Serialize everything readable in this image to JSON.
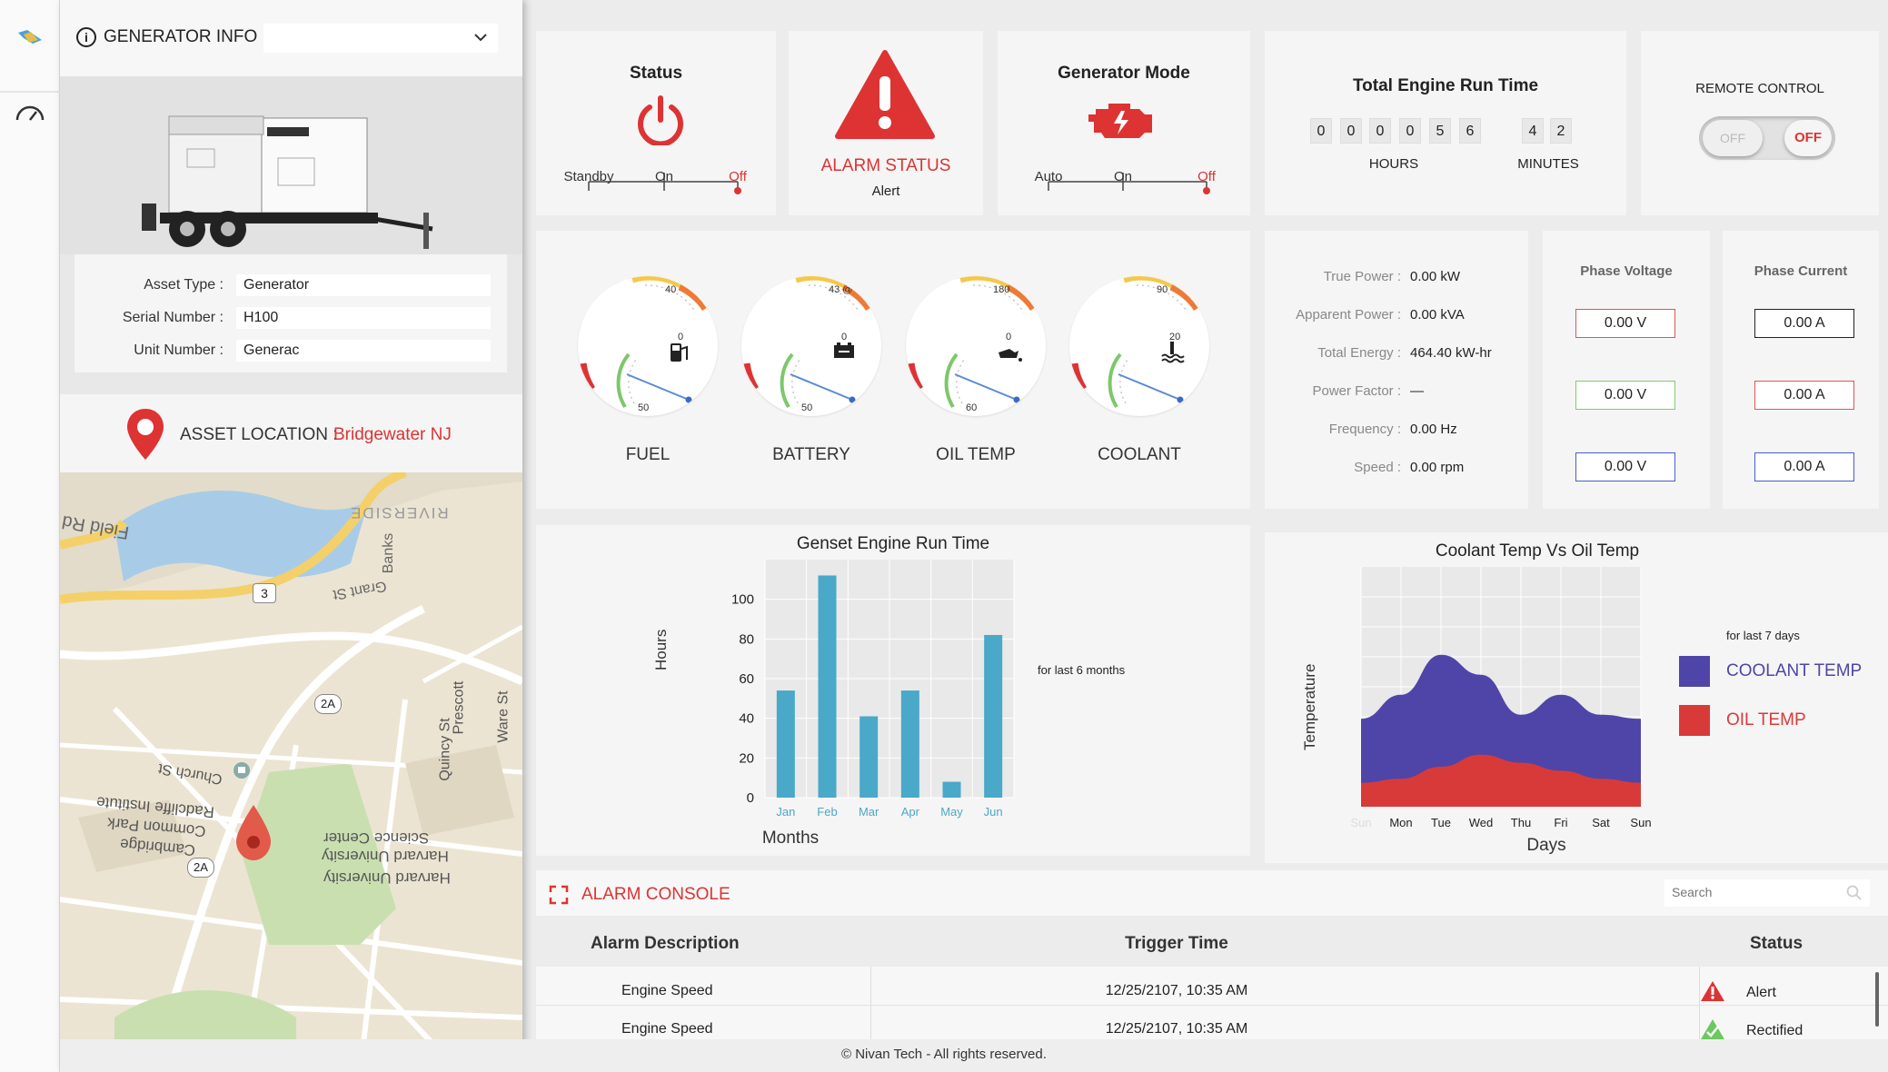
{
  "generator_info": {
    "title": "GENERATOR INFO",
    "fields": [
      {
        "label": "Asset Type :",
        "value": "Generator"
      },
      {
        "label": "Serial Number :",
        "value": "H100"
      },
      {
        "label": "Unit Number :",
        "value": "Generac"
      }
    ],
    "location_label": "ASSET LOCATION :",
    "location_value": "Bridgewater NJ"
  },
  "map": {
    "labels": {
      "riverside": "RIVERSIDE",
      "field_rd": "Field Rd",
      "grant_st": "Grant St",
      "banks": "Banks",
      "church_st": "Church St",
      "radcliffe": "Radcliffe Institute",
      "common_park": "Common Park",
      "cambridge": "Cambridge",
      "science_center": "Science Center",
      "harvard1": "Harvard University",
      "harvard2": "Harvard University",
      "quincy": "Quincy St",
      "prescott": "Prescott",
      "ware": "Ware St",
      "route3": "3",
      "route2a1": "2A",
      "route2a2": "2A"
    }
  },
  "status": {
    "title": "Status",
    "options": [
      "Standby",
      "On",
      "Off"
    ],
    "active": "Off"
  },
  "alarm": {
    "title": "ALARM STATUS",
    "value": "Alert"
  },
  "mode": {
    "title": "Generator Mode",
    "options": [
      "Auto",
      "On",
      "Off"
    ],
    "active": "Off"
  },
  "run_time": {
    "title": "Total Engine Run Time",
    "hours_digits": [
      "0",
      "0",
      "0",
      "0",
      "5",
      "6"
    ],
    "minutes_digits": [
      "4",
      "2"
    ],
    "hours_label": "HOURS",
    "minutes_label": "MINUTES"
  },
  "remote": {
    "title": "REMOTE CONTROL",
    "off_left": "OFF",
    "off_right": "OFF"
  },
  "gauges": [
    {
      "label": "FUEL",
      "icon": "fuel-pump-icon",
      "tick_a": "40",
      "tick_b": "0",
      "tick_c": "50"
    },
    {
      "label": "BATTERY",
      "icon": "battery-icon",
      "tick_a": "43 @",
      "tick_b": "0",
      "tick_c": "50"
    },
    {
      "label": "OIL TEMP",
      "icon": "oil-can-icon",
      "tick_a": "180",
      "tick_b": "0",
      "tick_c": "60"
    },
    {
      "label": "COOLANT",
      "icon": "coolant-icon",
      "tick_a": "90",
      "tick_b": "20",
      "tick_c": ""
    }
  ],
  "power": {
    "rows": [
      {
        "label": "True Power :",
        "value": "0.00 kW"
      },
      {
        "label": "Apparent Power :",
        "value": "0.00 kVA"
      },
      {
        "label": "Total Energy :",
        "value": "464.40 kW-hr"
      },
      {
        "label": "Power Factor :",
        "value": "—"
      },
      {
        "label": "Frequency :",
        "value": "0.00 Hz"
      },
      {
        "label": "Speed :",
        "value": "0.00 rpm"
      }
    ]
  },
  "phase_voltage": {
    "title": "Phase Voltage",
    "values": [
      "0.00 V",
      "0.00 V",
      "0.00 V"
    ],
    "colors": [
      "#e05555",
      "#7ccd6a",
      "#4a5ad0"
    ]
  },
  "phase_current": {
    "title": "Phase Current",
    "values": [
      "0.00 A",
      "0.00 A",
      "0.00 A"
    ],
    "colors": [
      "#222222",
      "#e05555",
      "#4a5ad0"
    ]
  },
  "chart_data": [
    {
      "type": "bar",
      "title": "Genset Engine Run Time",
      "xlabel": "Months",
      "ylabel": "Hours",
      "note": "for last 6 months",
      "categories": [
        "Jan",
        "Feb",
        "Mar",
        "Apr",
        "May",
        "Jun"
      ],
      "values": [
        54,
        112,
        41,
        54,
        8,
        82
      ],
      "ylim": [
        0,
        120
      ],
      "yticks": [
        "0",
        "20",
        "40",
        "60",
        "80",
        "100"
      ],
      "color": "#4aa8c8",
      "grid": true
    },
    {
      "type": "area",
      "title": "Coolant Temp Vs Oil Temp",
      "xlabel": "Days",
      "ylabel": "Temperature",
      "note": "for last 7 days",
      "categories": [
        "Sun",
        "Mon",
        "Tue",
        "Wed",
        "Thu",
        "Fri",
        "Sat",
        "Sun"
      ],
      "series": [
        {
          "name": "COOLANT TEMP",
          "color": "#4f45a8",
          "values": [
            22,
            28,
            38,
            33,
            23,
            28,
            23,
            22
          ]
        },
        {
          "name": "OIL TEMP",
          "color": "#d83a3a",
          "values": [
            6,
            7,
            10,
            13,
            11,
            9,
            7,
            6
          ]
        }
      ],
      "ylim": [
        0,
        60
      ],
      "grid": true,
      "legend": "right"
    }
  ],
  "alarm_console": {
    "title": "ALARM CONSOLE",
    "search_placeholder": "Search",
    "headers": [
      "Alarm Description",
      "Trigger Time",
      "Status"
    ],
    "rows": [
      {
        "description": "Engine Speed",
        "time": "12/25/2107, 10:35 AM",
        "status": "Alert"
      },
      {
        "description": "Engine Speed",
        "time": "12/25/2107, 10:35 AM",
        "status": "Rectified"
      }
    ]
  },
  "footer": "© Nivan Tech - All rights reserved."
}
